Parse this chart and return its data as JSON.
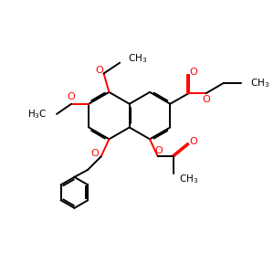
{
  "bg_color": "#ffffff",
  "bond_color": "#000000",
  "oxygen_color": "#ff0000",
  "lw": 1.4,
  "dbo": 0.055,
  "figsize": [
    3.0,
    3.0
  ],
  "dpi": 100,
  "xlim": [
    0,
    10
  ],
  "ylim": [
    0,
    10
  ]
}
